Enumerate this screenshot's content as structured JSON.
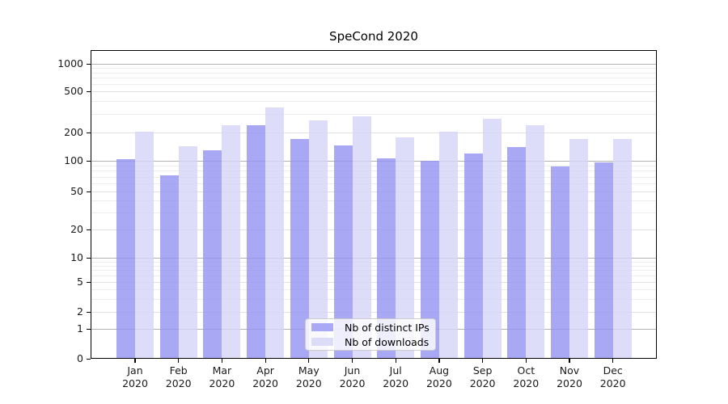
{
  "figure": {
    "title": "SpeCond 2020"
  },
  "legend": {
    "items": [
      {
        "label": "Nb of distinct IPs",
        "color": "#a9a9f5"
      },
      {
        "label": "Nb of downloads",
        "color": "#dcdcf8"
      }
    ]
  },
  "y_axis": {
    "tick_labels": [
      "0",
      "1",
      "2",
      "5",
      "10",
      "20",
      "50",
      "100",
      "200",
      "500",
      "1000"
    ],
    "tick_values": [
      0,
      1,
      2,
      5,
      10,
      20,
      50,
      100,
      200,
      500,
      1000
    ]
  },
  "x_axis": {
    "tick_labels": [
      "Jan 2020",
      "Feb 2020",
      "Mar 2020",
      "Apr 2020",
      "May 2020",
      "Jun 2020",
      "Jul 2020",
      "Aug 2020",
      "Sep 2020",
      "Oct 2020",
      "Nov 2020",
      "Dec 2020"
    ]
  },
  "chart_data": {
    "type": "bar",
    "title": "SpeCond 2020",
    "categories": [
      "Jan 2020",
      "Feb 2020",
      "Mar 2020",
      "Apr 2020",
      "May 2020",
      "Jun 2020",
      "Jul 2020",
      "Aug 2020",
      "Sep 2020",
      "Oct 2020",
      "Nov 2020",
      "Dec 2020"
    ],
    "series": [
      {
        "name": "Nb of distinct IPs",
        "color": "rgba(146,146,242,0.8)",
        "solid_color": "#a9a9f5",
        "values": [
          105,
          72,
          130,
          235,
          170,
          145,
          107,
          100,
          120,
          140,
          88,
          97
        ]
      },
      {
        "name": "Nb of downloads",
        "color": "rgba(212,212,248,0.8)",
        "solid_color": "#dcdcf8",
        "values": [
          203,
          142,
          235,
          350,
          260,
          285,
          178,
          203,
          270,
          235,
          172,
          170
        ]
      }
    ],
    "yscale": "log (symlog-like, linear segment 0-1)",
    "ylim": [
      0,
      1000
    ],
    "y_major_ticks": [
      0,
      1,
      2,
      5,
      10,
      20,
      50,
      100,
      200,
      500,
      1000
    ],
    "grid": "horizontal major + minor gridlines",
    "legend_position": "lower center inside plot"
  }
}
